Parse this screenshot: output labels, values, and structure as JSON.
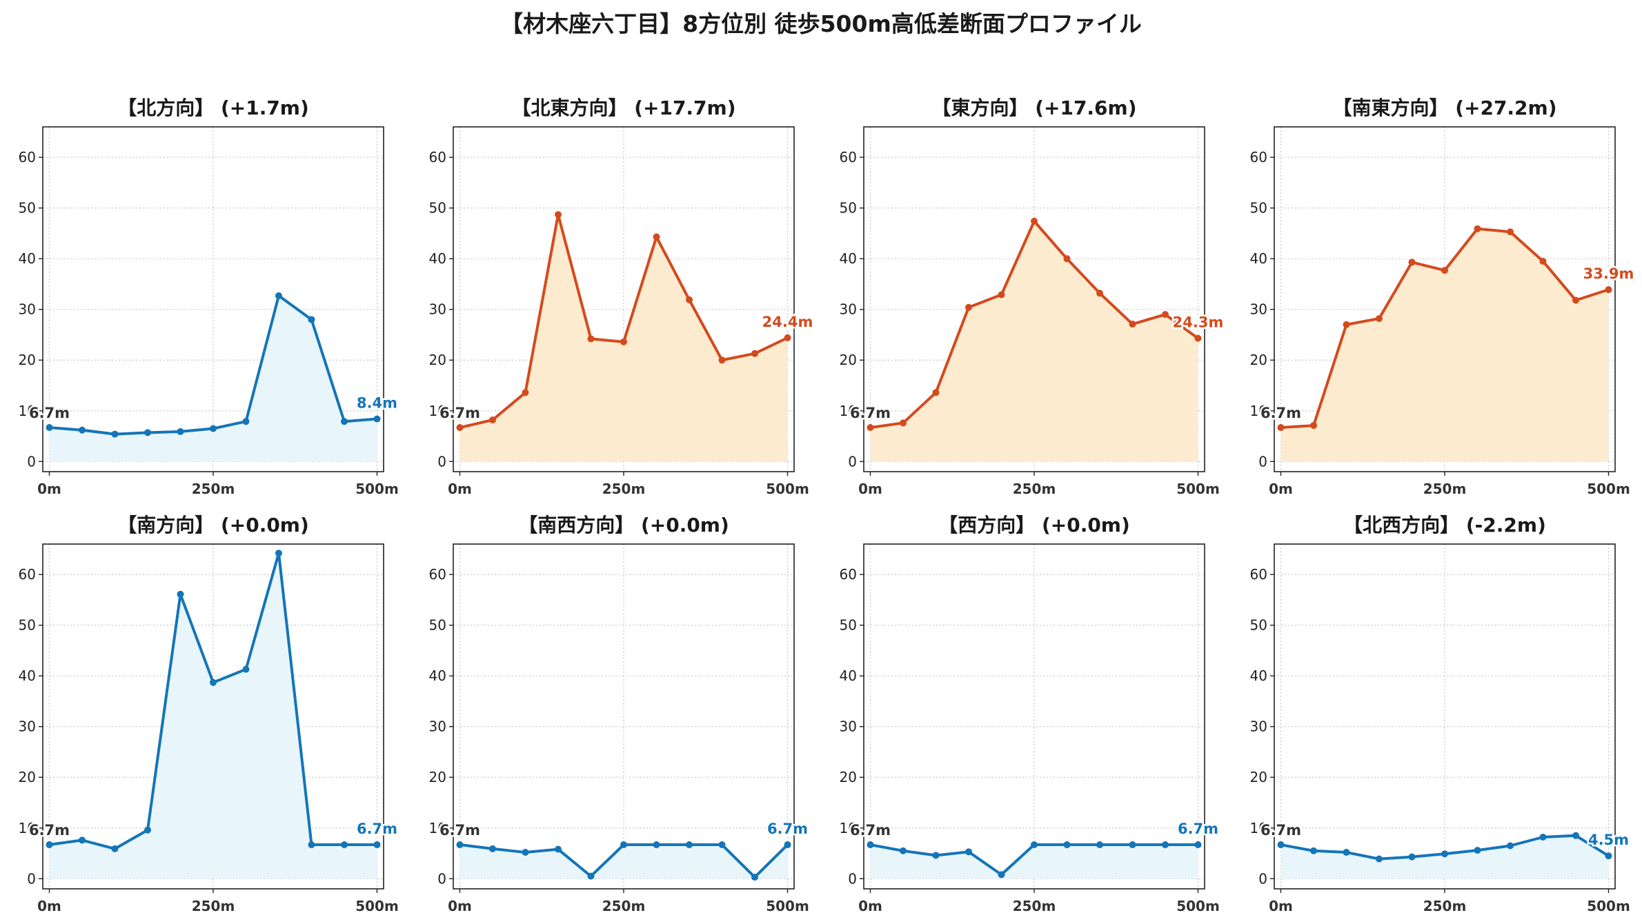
{
  "title": "【材木座六丁目】8方位別 徒歩500m高低差断面プロファイル",
  "colors": {
    "descend_line": "#1475b8",
    "descend_fill": "#e8f5fb",
    "ascend_line": "#d44a1d",
    "ascend_fill": "#fdebd0",
    "start_label": "#333333"
  },
  "chart_data": [
    {
      "type": "area",
      "title": "【北方向】 (+1.7m)",
      "trend": "down",
      "x": [
        0,
        50,
        100,
        150,
        200,
        250,
        300,
        350,
        400,
        450,
        500
      ],
      "y": [
        6.7,
        6.2,
        5.4,
        5.7,
        5.9,
        6.5,
        7.9,
        32.7,
        28.0,
        7.9,
        8.4
      ],
      "start_label": "6.7m",
      "end_label": "8.4m",
      "xticks": [
        "0m",
        "250m",
        "500m"
      ],
      "yticks": [
        0,
        10,
        20,
        30,
        40,
        50,
        60
      ],
      "xlim": [
        -10,
        510
      ],
      "ylim": [
        -2,
        66
      ],
      "grid": true
    },
    {
      "type": "area",
      "title": "【北東方向】 (+17.7m)",
      "trend": "up",
      "x": [
        0,
        50,
        100,
        150,
        200,
        250,
        300,
        350,
        400,
        450,
        500
      ],
      "y": [
        6.7,
        8.2,
        13.6,
        48.7,
        24.2,
        23.6,
        44.3,
        31.9,
        20.0,
        21.3,
        24.4
      ],
      "start_label": "6.7m",
      "end_label": "24.4m",
      "xticks": [
        "0m",
        "250m",
        "500m"
      ],
      "yticks": [
        0,
        10,
        20,
        30,
        40,
        50,
        60
      ],
      "xlim": [
        -10,
        510
      ],
      "ylim": [
        -2,
        66
      ],
      "grid": true
    },
    {
      "type": "area",
      "title": "【東方向】 (+17.6m)",
      "trend": "up",
      "x": [
        0,
        50,
        100,
        150,
        200,
        250,
        300,
        350,
        400,
        450,
        500
      ],
      "y": [
        6.7,
        7.6,
        13.6,
        30.4,
        32.9,
        47.4,
        40.0,
        33.2,
        27.1,
        29.0,
        24.3
      ],
      "start_label": "6.7m",
      "end_label": "24.3m",
      "xticks": [
        "0m",
        "250m",
        "500m"
      ],
      "yticks": [
        0,
        10,
        20,
        30,
        40,
        50,
        60
      ],
      "xlim": [
        -10,
        510
      ],
      "ylim": [
        -2,
        66
      ],
      "grid": true
    },
    {
      "type": "area",
      "title": "【南東方向】 (+27.2m)",
      "trend": "up",
      "x": [
        0,
        50,
        100,
        150,
        200,
        250,
        300,
        350,
        400,
        450,
        500
      ],
      "y": [
        6.7,
        7.1,
        27.0,
        28.2,
        39.3,
        37.7,
        45.9,
        45.3,
        39.5,
        31.8,
        33.9
      ],
      "start_label": "6.7m",
      "end_label": "33.9m",
      "xticks": [
        "0m",
        "250m",
        "500m"
      ],
      "yticks": [
        0,
        10,
        20,
        30,
        40,
        50,
        60
      ],
      "xlim": [
        -10,
        510
      ],
      "ylim": [
        -2,
        66
      ],
      "grid": true
    },
    {
      "type": "area",
      "title": "【南方向】 (+0.0m)",
      "trend": "down",
      "x": [
        0,
        50,
        100,
        150,
        200,
        250,
        300,
        350,
        400,
        450,
        500
      ],
      "y": [
        6.7,
        7.6,
        5.9,
        9.6,
        56.1,
        38.7,
        41.3,
        64.2,
        6.7,
        6.7,
        6.7
      ],
      "start_label": "6.7m",
      "end_label": "6.7m",
      "xticks": [
        "0m",
        "250m",
        "500m"
      ],
      "yticks": [
        0,
        10,
        20,
        30,
        40,
        50,
        60
      ],
      "xlim": [
        -10,
        510
      ],
      "ylim": [
        -2,
        66
      ],
      "grid": true
    },
    {
      "type": "area",
      "title": "【南西方向】 (+0.0m)",
      "trend": "down",
      "x": [
        0,
        50,
        100,
        150,
        200,
        250,
        300,
        350,
        400,
        450,
        500
      ],
      "y": [
        6.7,
        5.9,
        5.2,
        5.8,
        0.5,
        6.7,
        6.7,
        6.7,
        6.7,
        0.3,
        6.7
      ],
      "start_label": "6.7m",
      "end_label": "6.7m",
      "xticks": [
        "0m",
        "250m",
        "500m"
      ],
      "yticks": [
        0,
        10,
        20,
        30,
        40,
        50,
        60
      ],
      "xlim": [
        -10,
        510
      ],
      "ylim": [
        -2,
        66
      ],
      "grid": true
    },
    {
      "type": "area",
      "title": "【西方向】 (+0.0m)",
      "trend": "down",
      "x": [
        0,
        50,
        100,
        150,
        200,
        250,
        300,
        350,
        400,
        450,
        500
      ],
      "y": [
        6.7,
        5.5,
        4.6,
        5.3,
        0.8,
        6.7,
        6.7,
        6.7,
        6.7,
        6.7,
        6.7
      ],
      "start_label": "6.7m",
      "end_label": "6.7m",
      "xticks": [
        "0m",
        "250m",
        "500m"
      ],
      "yticks": [
        0,
        10,
        20,
        30,
        40,
        50,
        60
      ],
      "xlim": [
        -10,
        510
      ],
      "ylim": [
        -2,
        66
      ],
      "grid": true
    },
    {
      "type": "area",
      "title": "【北西方向】 (-2.2m)",
      "trend": "down",
      "x": [
        0,
        50,
        100,
        150,
        200,
        250,
        300,
        350,
        400,
        450,
        500
      ],
      "y": [
        6.7,
        5.5,
        5.2,
        3.9,
        4.3,
        4.9,
        5.6,
        6.5,
        8.2,
        8.5,
        4.5
      ],
      "start_label": "6.7m",
      "end_label": "4.5m",
      "xticks": [
        "0m",
        "250m",
        "500m"
      ],
      "yticks": [
        0,
        10,
        20,
        30,
        40,
        50,
        60
      ],
      "xlim": [
        -10,
        510
      ],
      "ylim": [
        -2,
        66
      ],
      "grid": true
    }
  ]
}
